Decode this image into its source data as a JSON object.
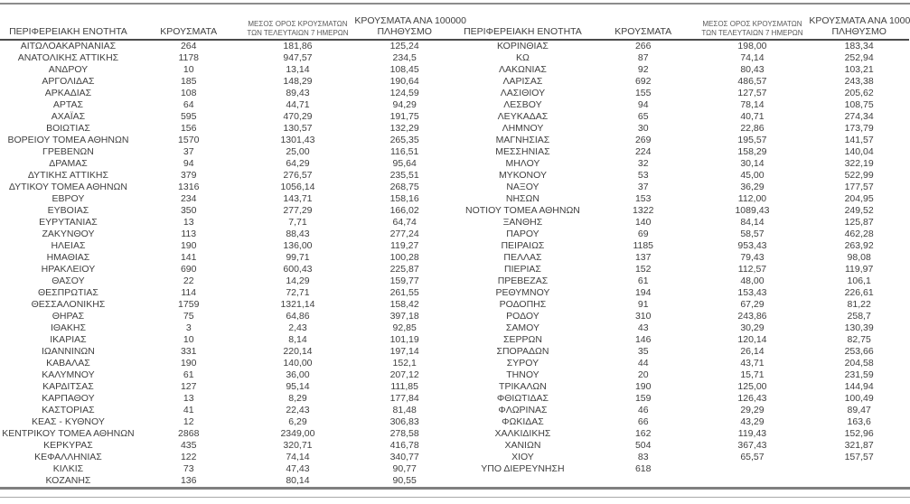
{
  "table": {
    "headers": {
      "region": "ΠΕΡΙΦΕΡΕΙΑΚΗ ΕΝΟΤΗΤΑ",
      "cases": "ΚΡΟΥΣΜΑΤΑ",
      "avg7_line1": "ΜΕΣΟΣ ΟΡΟΣ ΚΡΟΥΣΜΑΤΩΝ",
      "avg7_line2": "ΤΩΝ ΤΕΛΕΥΤΑΙΩΝ 7 ΗΜΕΡΩΝ",
      "per100k_line1": "ΚΡΟΥΣΜΑΤΑ ΑΝΑ 100000",
      "per100k_line2": "ΠΛΗΘΥΣΜΟ"
    },
    "left_rows": [
      [
        "ΑΙΤΩΛΟΑΚΑΡΝΑΝΙΑΣ",
        "264",
        "181,86",
        "125,24"
      ],
      [
        "ΑΝΑΤΟΛΙΚΗΣ ΑΤΤΙΚΗΣ",
        "1178",
        "947,57",
        "234,5"
      ],
      [
        "ΑΝΔΡΟΥ",
        "10",
        "13,14",
        "108,45"
      ],
      [
        "ΑΡΓΟΛΙΔΑΣ",
        "185",
        "148,29",
        "190,64"
      ],
      [
        "ΑΡΚΑΔΙΑΣ",
        "108",
        "89,43",
        "124,59"
      ],
      [
        "ΑΡΤΑΣ",
        "64",
        "44,71",
        "94,29"
      ],
      [
        "ΑΧΑΪΑΣ",
        "595",
        "470,29",
        "191,75"
      ],
      [
        "ΒΟΙΩΤΙΑΣ",
        "156",
        "130,57",
        "132,29"
      ],
      [
        "ΒΟΡΕΙΟΥ ΤΟΜΕΑ ΑΘΗΝΩΝ",
        "1570",
        "1301,43",
        "265,35"
      ],
      [
        "ΓΡΕΒΕΝΩΝ",
        "37",
        "25,00",
        "116,51"
      ],
      [
        "ΔΡΑΜΑΣ",
        "94",
        "64,29",
        "95,64"
      ],
      [
        "ΔΥΤΙΚΗΣ ΑΤΤΙΚΗΣ",
        "379",
        "276,57",
        "235,51"
      ],
      [
        "ΔΥΤΙΚΟΥ ΤΟΜΕΑ ΑΘΗΝΩΝ",
        "1316",
        "1056,14",
        "268,75"
      ],
      [
        "ΕΒΡΟΥ",
        "234",
        "143,71",
        "158,16"
      ],
      [
        "ΕΥΒΟΙΑΣ",
        "350",
        "277,29",
        "166,02"
      ],
      [
        "ΕΥΡΥΤΑΝΙΑΣ",
        "13",
        "7,71",
        "64,74"
      ],
      [
        "ΖΑΚΥΝΘΟΥ",
        "113",
        "88,43",
        "277,24"
      ],
      [
        "ΗΛΕΙΑΣ",
        "190",
        "136,00",
        "119,27"
      ],
      [
        "ΗΜΑΘΙΑΣ",
        "141",
        "99,71",
        "100,28"
      ],
      [
        "ΗΡΑΚΛΕΙΟΥ",
        "690",
        "600,43",
        "225,87"
      ],
      [
        "ΘΑΣΟΥ",
        "22",
        "14,29",
        "159,77"
      ],
      [
        "ΘΕΣΠΡΩΤΙΑΣ",
        "114",
        "72,71",
        "261,55"
      ],
      [
        "ΘΕΣΣΑΛΟΝΙΚΗΣ",
        "1759",
        "1321,14",
        "158,42"
      ],
      [
        "ΘΗΡΑΣ",
        "75",
        "64,86",
        "397,18"
      ],
      [
        "ΙΘΑΚΗΣ",
        "3",
        "2,43",
        "92,85"
      ],
      [
        "ΙΚΑΡΙΑΣ",
        "10",
        "8,14",
        "101,19"
      ],
      [
        "ΙΩΑΝΝΙΝΩΝ",
        "331",
        "220,14",
        "197,14"
      ],
      [
        "ΚΑΒΑΛΑΣ",
        "190",
        "140,00",
        "152,1"
      ],
      [
        "ΚΑΛΥΜΝΟΥ",
        "61",
        "36,00",
        "207,12"
      ],
      [
        "ΚΑΡΔΙΤΣΑΣ",
        "127",
        "95,14",
        "111,85"
      ],
      [
        "ΚΑΡΠΑΘΟΥ",
        "13",
        "8,29",
        "177,84"
      ],
      [
        "ΚΑΣΤΟΡΙΑΣ",
        "41",
        "22,43",
        "81,48"
      ],
      [
        "ΚΕΑΣ - ΚΥΘΝΟΥ",
        "12",
        "6,29",
        "306,83"
      ],
      [
        "ΚΕΝΤΡΙΚΟΥ ΤΟΜΕΑ ΑΘΗΝΩΝ",
        "2868",
        "2349,00",
        "278,58"
      ],
      [
        "ΚΕΡΚΥΡΑΣ",
        "435",
        "320,71",
        "416,78"
      ],
      [
        "ΚΕΦΑΛΛΗΝΙΑΣ",
        "122",
        "74,14",
        "340,77"
      ],
      [
        "ΚΙΛΚΙΣ",
        "73",
        "47,43",
        "90,77"
      ],
      [
        "ΚΟΖΑΝΗΣ",
        "136",
        "80,14",
        "90,55"
      ]
    ],
    "right_rows": [
      [
        "ΚΟΡΙΝΘΙΑΣ",
        "266",
        "198,00",
        "183,34"
      ],
      [
        "ΚΩ",
        "87",
        "74,14",
        "252,94"
      ],
      [
        "ΛΑΚΩΝΙΑΣ",
        "92",
        "80,43",
        "103,21"
      ],
      [
        "ΛΑΡΙΣΑΣ",
        "692",
        "486,57",
        "243,38"
      ],
      [
        "ΛΑΣΙΘΙΟΥ",
        "155",
        "127,57",
        "205,62"
      ],
      [
        "ΛΕΣΒΟΥ",
        "94",
        "78,14",
        "108,75"
      ],
      [
        "ΛΕΥΚΑΔΑΣ",
        "65",
        "40,71",
        "274,34"
      ],
      [
        "ΛΗΜΝΟΥ",
        "30",
        "22,86",
        "173,79"
      ],
      [
        "ΜΑΓΝΗΣΙΑΣ",
        "269",
        "195,57",
        "141,57"
      ],
      [
        "ΜΕΣΣΗΝΙΑΣ",
        "224",
        "158,29",
        "140,04"
      ],
      [
        "ΜΗΛΟΥ",
        "32",
        "30,14",
        "322,19"
      ],
      [
        "ΜΥΚΟΝΟΥ",
        "53",
        "45,00",
        "522,99"
      ],
      [
        "ΝΑΞΟΥ",
        "37",
        "36,29",
        "177,57"
      ],
      [
        "ΝΗΣΩΝ",
        "153",
        "112,00",
        "204,95"
      ],
      [
        "ΝΟΤΙΟΥ ΤΟΜΕΑ ΑΘΗΝΩΝ",
        "1322",
        "1089,43",
        "249,52"
      ],
      [
        "ΞΑΝΘΗΣ",
        "140",
        "84,14",
        "125,87"
      ],
      [
        "ΠΑΡΟΥ",
        "69",
        "58,57",
        "462,28"
      ],
      [
        "ΠΕΙΡΑΙΩΣ",
        "1185",
        "953,43",
        "263,92"
      ],
      [
        "ΠΕΛΛΑΣ",
        "137",
        "79,43",
        "98,08"
      ],
      [
        "ΠΙΕΡΙΑΣ",
        "152",
        "112,57",
        "119,97"
      ],
      [
        "ΠΡΕΒΕΖΑΣ",
        "61",
        "48,00",
        "106,1"
      ],
      [
        "ΡΕΘΥΜΝΟΥ",
        "194",
        "153,43",
        "226,61"
      ],
      [
        "ΡΟΔΟΠΗΣ",
        "91",
        "67,29",
        "81,22"
      ],
      [
        "ΡΟΔΟΥ",
        "310",
        "243,86",
        "258,7"
      ],
      [
        "ΣΑΜΟΥ",
        "43",
        "30,29",
        "130,39"
      ],
      [
        "ΣΕΡΡΩΝ",
        "146",
        "120,14",
        "82,75"
      ],
      [
        "ΣΠΟΡΑΔΩΝ",
        "35",
        "26,14",
        "253,66"
      ],
      [
        "ΣΥΡΟΥ",
        "44",
        "43,71",
        "204,58"
      ],
      [
        "ΤΗΝΟΥ",
        "20",
        "15,71",
        "231,59"
      ],
      [
        "ΤΡΙΚΑΛΩΝ",
        "190",
        "125,00",
        "144,94"
      ],
      [
        "ΦΘΙΩΤΙΔΑΣ",
        "159",
        "126,43",
        "100,49"
      ],
      [
        "ΦΛΩΡΙΝΑΣ",
        "46",
        "29,29",
        "89,47"
      ],
      [
        "ΦΩΚΙΔΑΣ",
        "66",
        "43,29",
        "163,6"
      ],
      [
        "ΧΑΛΚΙΔΙΚΗΣ",
        "162",
        "119,43",
        "152,96"
      ],
      [
        "ΧΑΝΙΩΝ",
        "504",
        "367,43",
        "321,87"
      ],
      [
        "ΧΙΟΥ",
        "83",
        "65,57",
        "157,57"
      ],
      [
        "ΥΠΟ ΔΙΕΡΕΥΝΗΣΗ",
        "618",
        "",
        ""
      ]
    ]
  },
  "colors": {
    "text": "#3f3f3f",
    "header_rule": "#4a4a4a",
    "top_rule": "#8c8c8c",
    "bottom_thick_rule": "#7f7f7f",
    "bottom_thin_rule": "#a9a9a9"
  }
}
